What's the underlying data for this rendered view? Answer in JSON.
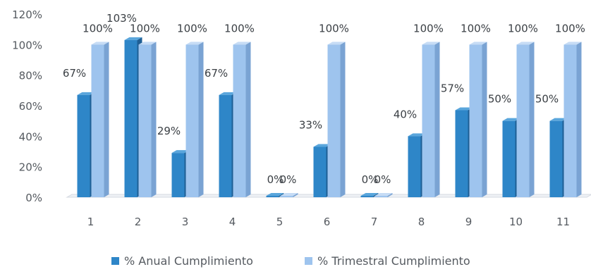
{
  "chart_data": {
    "type": "bar",
    "categories": [
      "1",
      "2",
      "3",
      "4",
      "5",
      "6",
      "7",
      "8",
      "9",
      "10",
      "11"
    ],
    "series": [
      {
        "name": "% Anual Cumplimiento",
        "values": [
          67,
          103,
          29,
          67,
          0,
          33,
          0,
          40,
          57,
          50,
          50
        ],
        "labels": [
          "67%",
          "103%",
          "29%",
          "67%",
          "0%",
          "33%",
          "0%",
          "40%",
          "57%",
          "50%",
          "50%"
        ]
      },
      {
        "name": "% Trimestral Cumplimiento",
        "values": [
          100,
          100,
          100,
          100,
          0,
          100,
          0,
          100,
          100,
          100,
          100
        ],
        "labels": [
          "100%",
          "100%",
          "100%",
          "100%",
          "0%",
          "100%",
          "0%",
          "100%",
          "100%",
          "100%",
          "100%"
        ]
      }
    ],
    "yticks": [
      "0%",
      "20%",
      "40%",
      "60%",
      "80%",
      "100%",
      "120%"
    ],
    "ylim": [
      0,
      120
    ],
    "grid": false,
    "legend_position": "bottom",
    "colors": {
      "anual": "#2e86c8",
      "anual_side": "#1f5f95",
      "anual_top": "#5aa6dc",
      "trimestral": "#9ec4ee",
      "trimestral_side": "#7aa3d3",
      "trimestral_top": "#c6dcf5"
    }
  }
}
